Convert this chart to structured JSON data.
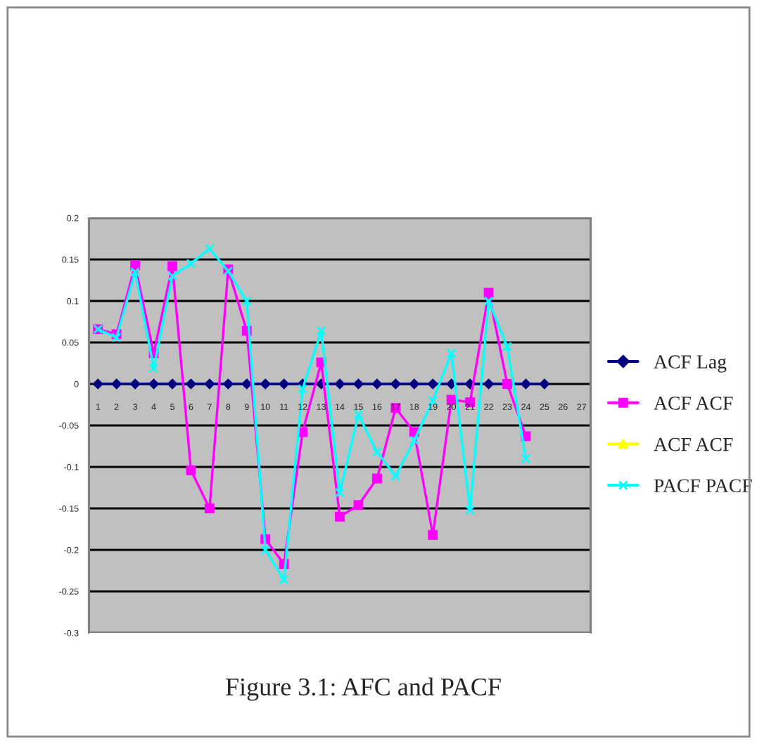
{
  "chart_data": {
    "type": "line",
    "categories": [
      "1",
      "2",
      "3",
      "4",
      "5",
      "6",
      "7",
      "8",
      "9",
      "10",
      "11",
      "12",
      "13",
      "14",
      "15",
      "16",
      "17",
      "18",
      "19",
      "20",
      "21",
      "22",
      "23",
      "24",
      "25",
      "26",
      "27"
    ],
    "series": [
      {
        "name": "ACF Lag",
        "color": "#000080",
        "marker": "diamond",
        "values": [
          0,
          0,
          0,
          0,
          0,
          0,
          0,
          0,
          0,
          0,
          0,
          0,
          0,
          0,
          0,
          0,
          0,
          0,
          0,
          0,
          0,
          0,
          0,
          0,
          0,
          null,
          null
        ]
      },
      {
        "name": "ACF ACF",
        "color": "#ff00ff",
        "marker": "square",
        "values": [
          0.066,
          0.06,
          0.143,
          0.037,
          0.142,
          -0.104,
          -0.15,
          0.138,
          0.064,
          -0.187,
          -0.217,
          -0.058,
          0.026,
          -0.16,
          -0.146,
          -0.114,
          -0.029,
          -0.058,
          -0.182,
          -0.019,
          -0.022,
          0.11,
          0.0,
          -0.063,
          null,
          null,
          null
        ]
      },
      {
        "name": "ACF ACF",
        "color": "#ffff00",
        "marker": "triangle",
        "values": [
          null,
          null,
          null,
          null,
          null,
          null,
          null,
          null,
          null,
          null,
          null,
          null,
          null,
          null,
          null,
          null,
          null,
          null,
          null,
          null,
          null,
          null,
          null,
          null,
          null,
          null,
          null
        ]
      },
      {
        "name": "PACF PACF",
        "color": "#00ffff",
        "marker": "cross",
        "values": [
          0.066,
          0.056,
          0.135,
          0.019,
          0.13,
          0.145,
          0.163,
          0.136,
          0.1,
          -0.2,
          -0.236,
          -0.006,
          0.064,
          -0.131,
          -0.037,
          -0.082,
          -0.111,
          -0.068,
          -0.02,
          0.037,
          -0.152,
          0.1,
          0.045,
          -0.09,
          null,
          null,
          null
        ]
      }
    ],
    "ylim": [
      -0.3,
      0.2
    ],
    "yticks": [
      -0.3,
      -0.25,
      -0.2,
      -0.15,
      -0.1,
      -0.05,
      0,
      0.05,
      0.1,
      0.15,
      0.2
    ],
    "grid": "y",
    "legend": "right",
    "annotations": [
      "Figure 3.1: AFC and PACF"
    ]
  }
}
